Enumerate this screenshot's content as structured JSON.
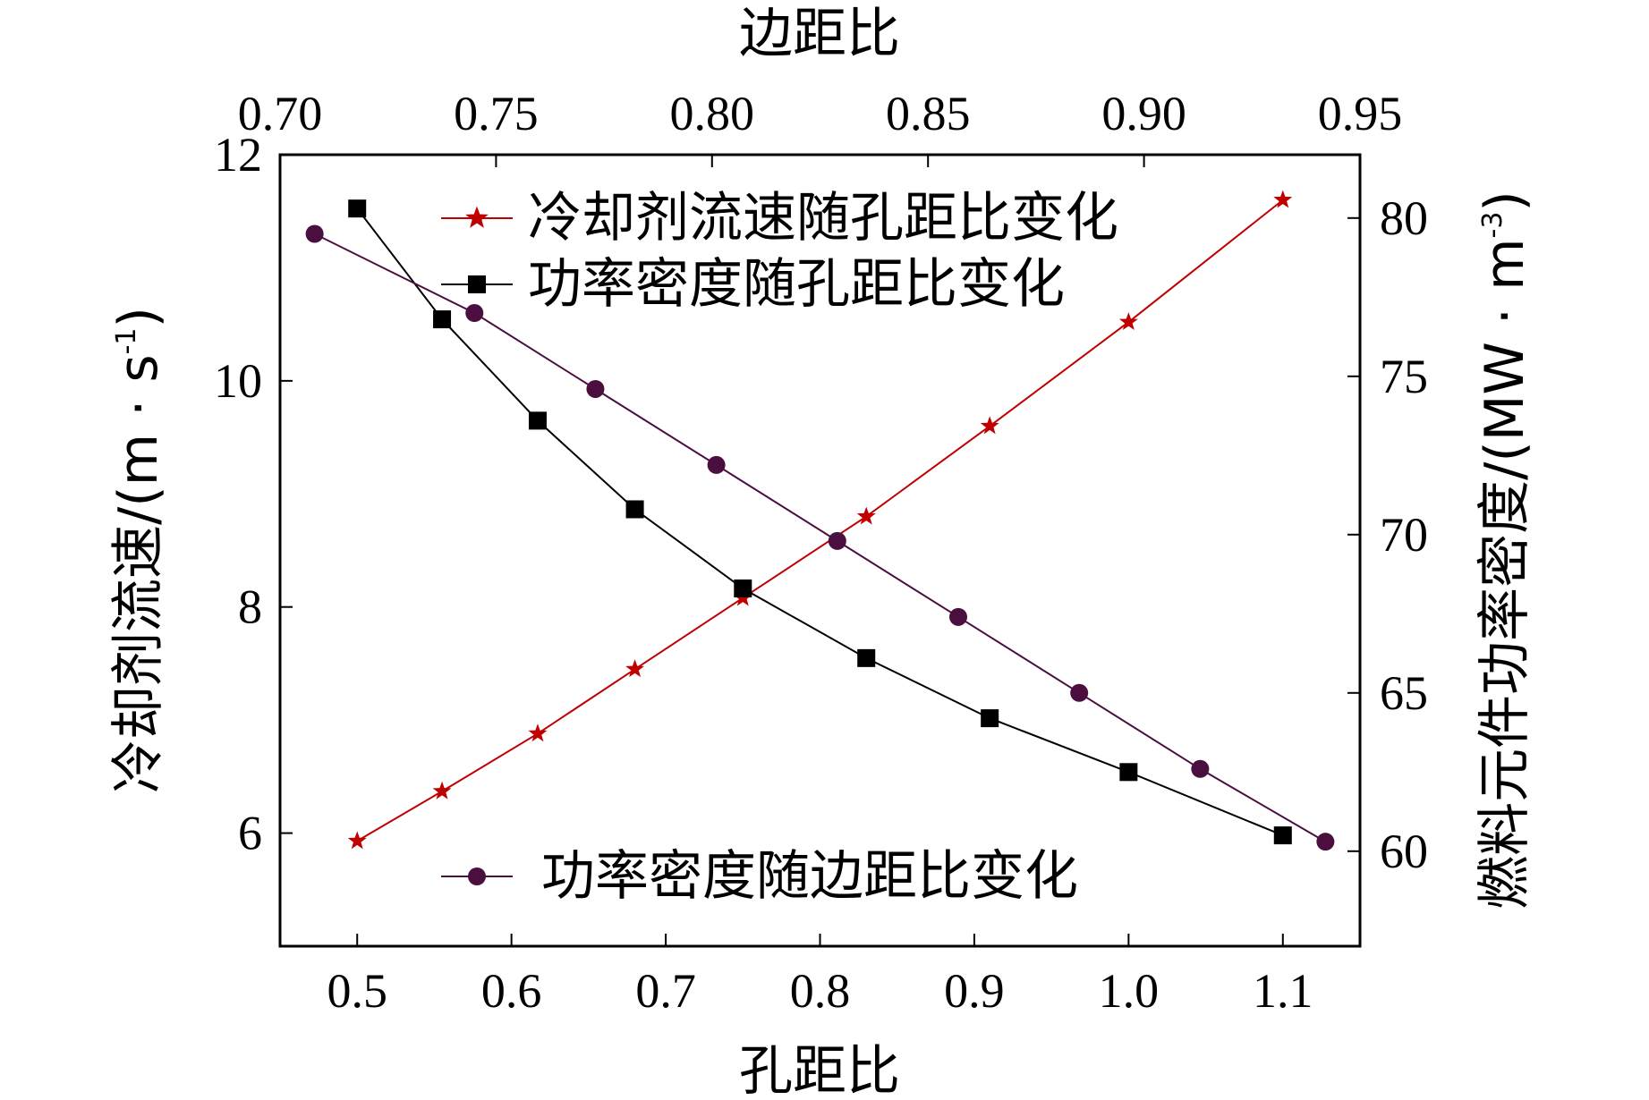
{
  "chart_data": {
    "type": "line",
    "top_xlabel": "边距比",
    "bottom_xlabel": "孔距比",
    "left_ylabel": {
      "main": "冷却剂流速/(m · s",
      "sup": "-1",
      "end": ")"
    },
    "right_ylabel": {
      "main": "燃料元件功率密度/(MW · m",
      "sup": "-3",
      "end": ")"
    },
    "top_x_range": [
      0.7,
      0.95
    ],
    "top_x_ticks": [
      "0.70",
      "0.75",
      "0.80",
      "0.85",
      "0.90",
      "0.95"
    ],
    "bottom_x_range": [
      0.45,
      1.15
    ],
    "bottom_x_ticks": [
      "0.5",
      "0.6",
      "0.7",
      "0.8",
      "0.9",
      "1.0",
      "1.1"
    ],
    "left_y_range": [
      5,
      12
    ],
    "left_y_ticks": [
      "6",
      "8",
      "10",
      "12"
    ],
    "right_y_range": [
      57,
      82
    ],
    "right_y_ticks": [
      "60",
      "65",
      "70",
      "75",
      "80"
    ],
    "series": [
      {
        "name": "冷却剂流速随孔距比变化",
        "color": "#c00000",
        "marker": "star",
        "x_axis": "bottom",
        "y_axis": "left",
        "x": [
          0.5,
          0.555,
          0.617,
          0.68,
          0.75,
          0.83,
          0.91,
          1.0,
          1.1
        ],
        "y": [
          5.93,
          6.37,
          6.88,
          7.45,
          8.08,
          8.8,
          9.6,
          10.52,
          11.6
        ]
      },
      {
        "name": "功率密度随孔距比变化",
        "color": "#000000",
        "marker": "square",
        "x_axis": "bottom",
        "y_axis": "right",
        "x": [
          0.5,
          0.555,
          0.617,
          0.68,
          0.75,
          0.83,
          0.91,
          1.0,
          1.1
        ],
        "y": [
          80.3,
          76.8,
          73.6,
          70.8,
          68.3,
          66.1,
          64.2,
          62.5,
          60.5
        ]
      },
      {
        "name": "功率密度随边距比变化",
        "color": "#4a0f3f",
        "marker": "circle",
        "x_axis": "top",
        "y_axis": "right",
        "x": [
          0.708,
          0.745,
          0.773,
          0.801,
          0.829,
          0.857,
          0.885,
          0.913,
          0.942
        ],
        "y": [
          79.5,
          77.0,
          74.6,
          72.2,
          69.8,
          67.4,
          65.0,
          62.6,
          60.3
        ]
      }
    ]
  }
}
